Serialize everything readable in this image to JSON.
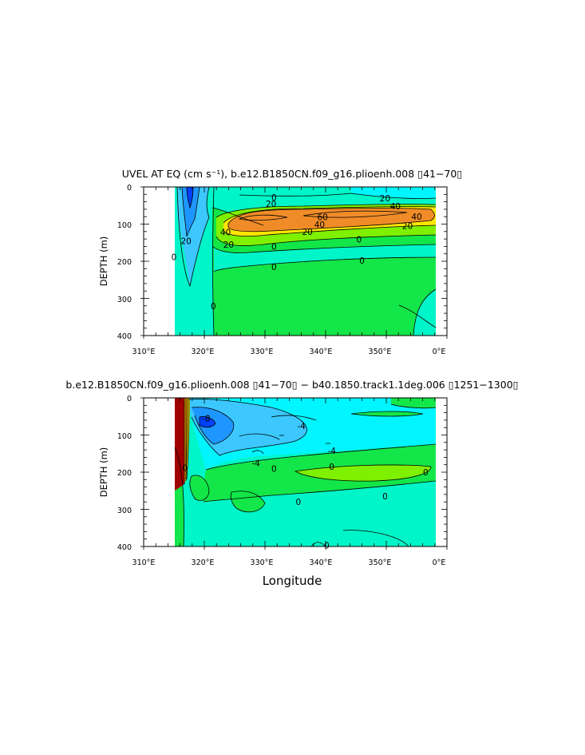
{
  "figure": {
    "xlabel": "Longitude"
  },
  "palette": {
    "cyan": "#00f5ff",
    "aqua_green": "#00f5c8",
    "green": "#13e648",
    "light_green": "#7ff000",
    "yellow": "#ffe600",
    "orange": "#ffa500",
    "dark_orange": "#f08c28",
    "light_blue": "#3cc8ff",
    "mid_blue": "#1e96ff",
    "blue": "#0040ff",
    "dark_red": "#a00000"
  },
  "chart_data": [
    {
      "type": "heatmap",
      "title": "UVEL AT EQ (cm s⁻¹), b.e12.B1850CN.f09_g16.plioenh.008 ▯41−70▯",
      "xlabel": "",
      "ylabel": "DEPTH (m)",
      "x_ticks": [
        "310°E",
        "320°E",
        "330°E",
        "340°E",
        "350°E",
        "0°E"
      ],
      "y_ticks": [
        "0",
        "100",
        "200",
        "300",
        "400"
      ],
      "xlim": [
        310,
        360
      ],
      "ylim": [
        400,
        0
      ],
      "grid": false,
      "contour_labels": [
        {
          "text": "0",
          "x": 331.5,
          "y": 28
        },
        {
          "text": "20",
          "x": 349.8,
          "y": 30
        },
        {
          "text": "40",
          "x": 351.5,
          "y": 52
        },
        {
          "text": "20",
          "x": 331.0,
          "y": 45
        },
        {
          "text": "60",
          "x": 339.5,
          "y": 81
        },
        {
          "text": "40",
          "x": 355.0,
          "y": 80
        },
        {
          "text": "40",
          "x": 339.0,
          "y": 101
        },
        {
          "text": "20",
          "x": 353.5,
          "y": 104
        },
        {
          "text": "20",
          "x": 337.0,
          "y": 120
        },
        {
          "text": "40",
          "x": 323.5,
          "y": 122
        },
        {
          "text": "20",
          "x": 324.0,
          "y": 155
        },
        {
          "text": "0",
          "x": 345.5,
          "y": 141
        },
        {
          "text": "0",
          "x": 331.5,
          "y": 160
        },
        {
          "text": "0",
          "x": 346.0,
          "y": 198
        },
        {
          "text": "0",
          "x": 331.5,
          "y": 215
        },
        {
          "text": "20",
          "x": 317.0,
          "y": 145
        },
        {
          "text": "0",
          "x": 315.0,
          "y": 188
        },
        {
          "text": "0",
          "x": 321.5,
          "y": 320
        }
      ]
    },
    {
      "type": "heatmap",
      "title": "b.e12.B1850CN.f09_g16.plioenh.008 ▯41−70▯ − b40.1850.track1.1deg.006 ▯1251−1300▯",
      "xlabel": "Longitude",
      "ylabel": "DEPTH (m)",
      "x_ticks": [
        "310°E",
        "320°E",
        "330°E",
        "340°E",
        "350°E",
        "0°E"
      ],
      "y_ticks": [
        "0",
        "100",
        "200",
        "300",
        "400"
      ],
      "xlim": [
        310,
        360
      ],
      "ylim": [
        400,
        0
      ],
      "grid": false,
      "contour_labels": [
        {
          "text": "-8",
          "x": 320.3,
          "y": 55
        },
        {
          "text": "-4",
          "x": 336.0,
          "y": 75
        },
        {
          "text": "-4",
          "x": 341.0,
          "y": 142
        },
        {
          "text": "-4",
          "x": 328.5,
          "y": 175
        },
        {
          "text": "0",
          "x": 341.0,
          "y": 185
        },
        {
          "text": "0",
          "x": 356.5,
          "y": 200
        },
        {
          "text": "0",
          "x": 331.5,
          "y": 190
        },
        {
          "text": "0",
          "x": 316.8,
          "y": 188
        },
        {
          "text": "0",
          "x": 335.5,
          "y": 280
        },
        {
          "text": "0",
          "x": 349.8,
          "y": 265
        },
        {
          "text": "0",
          "x": 340.2,
          "y": 397
        }
      ]
    }
  ]
}
